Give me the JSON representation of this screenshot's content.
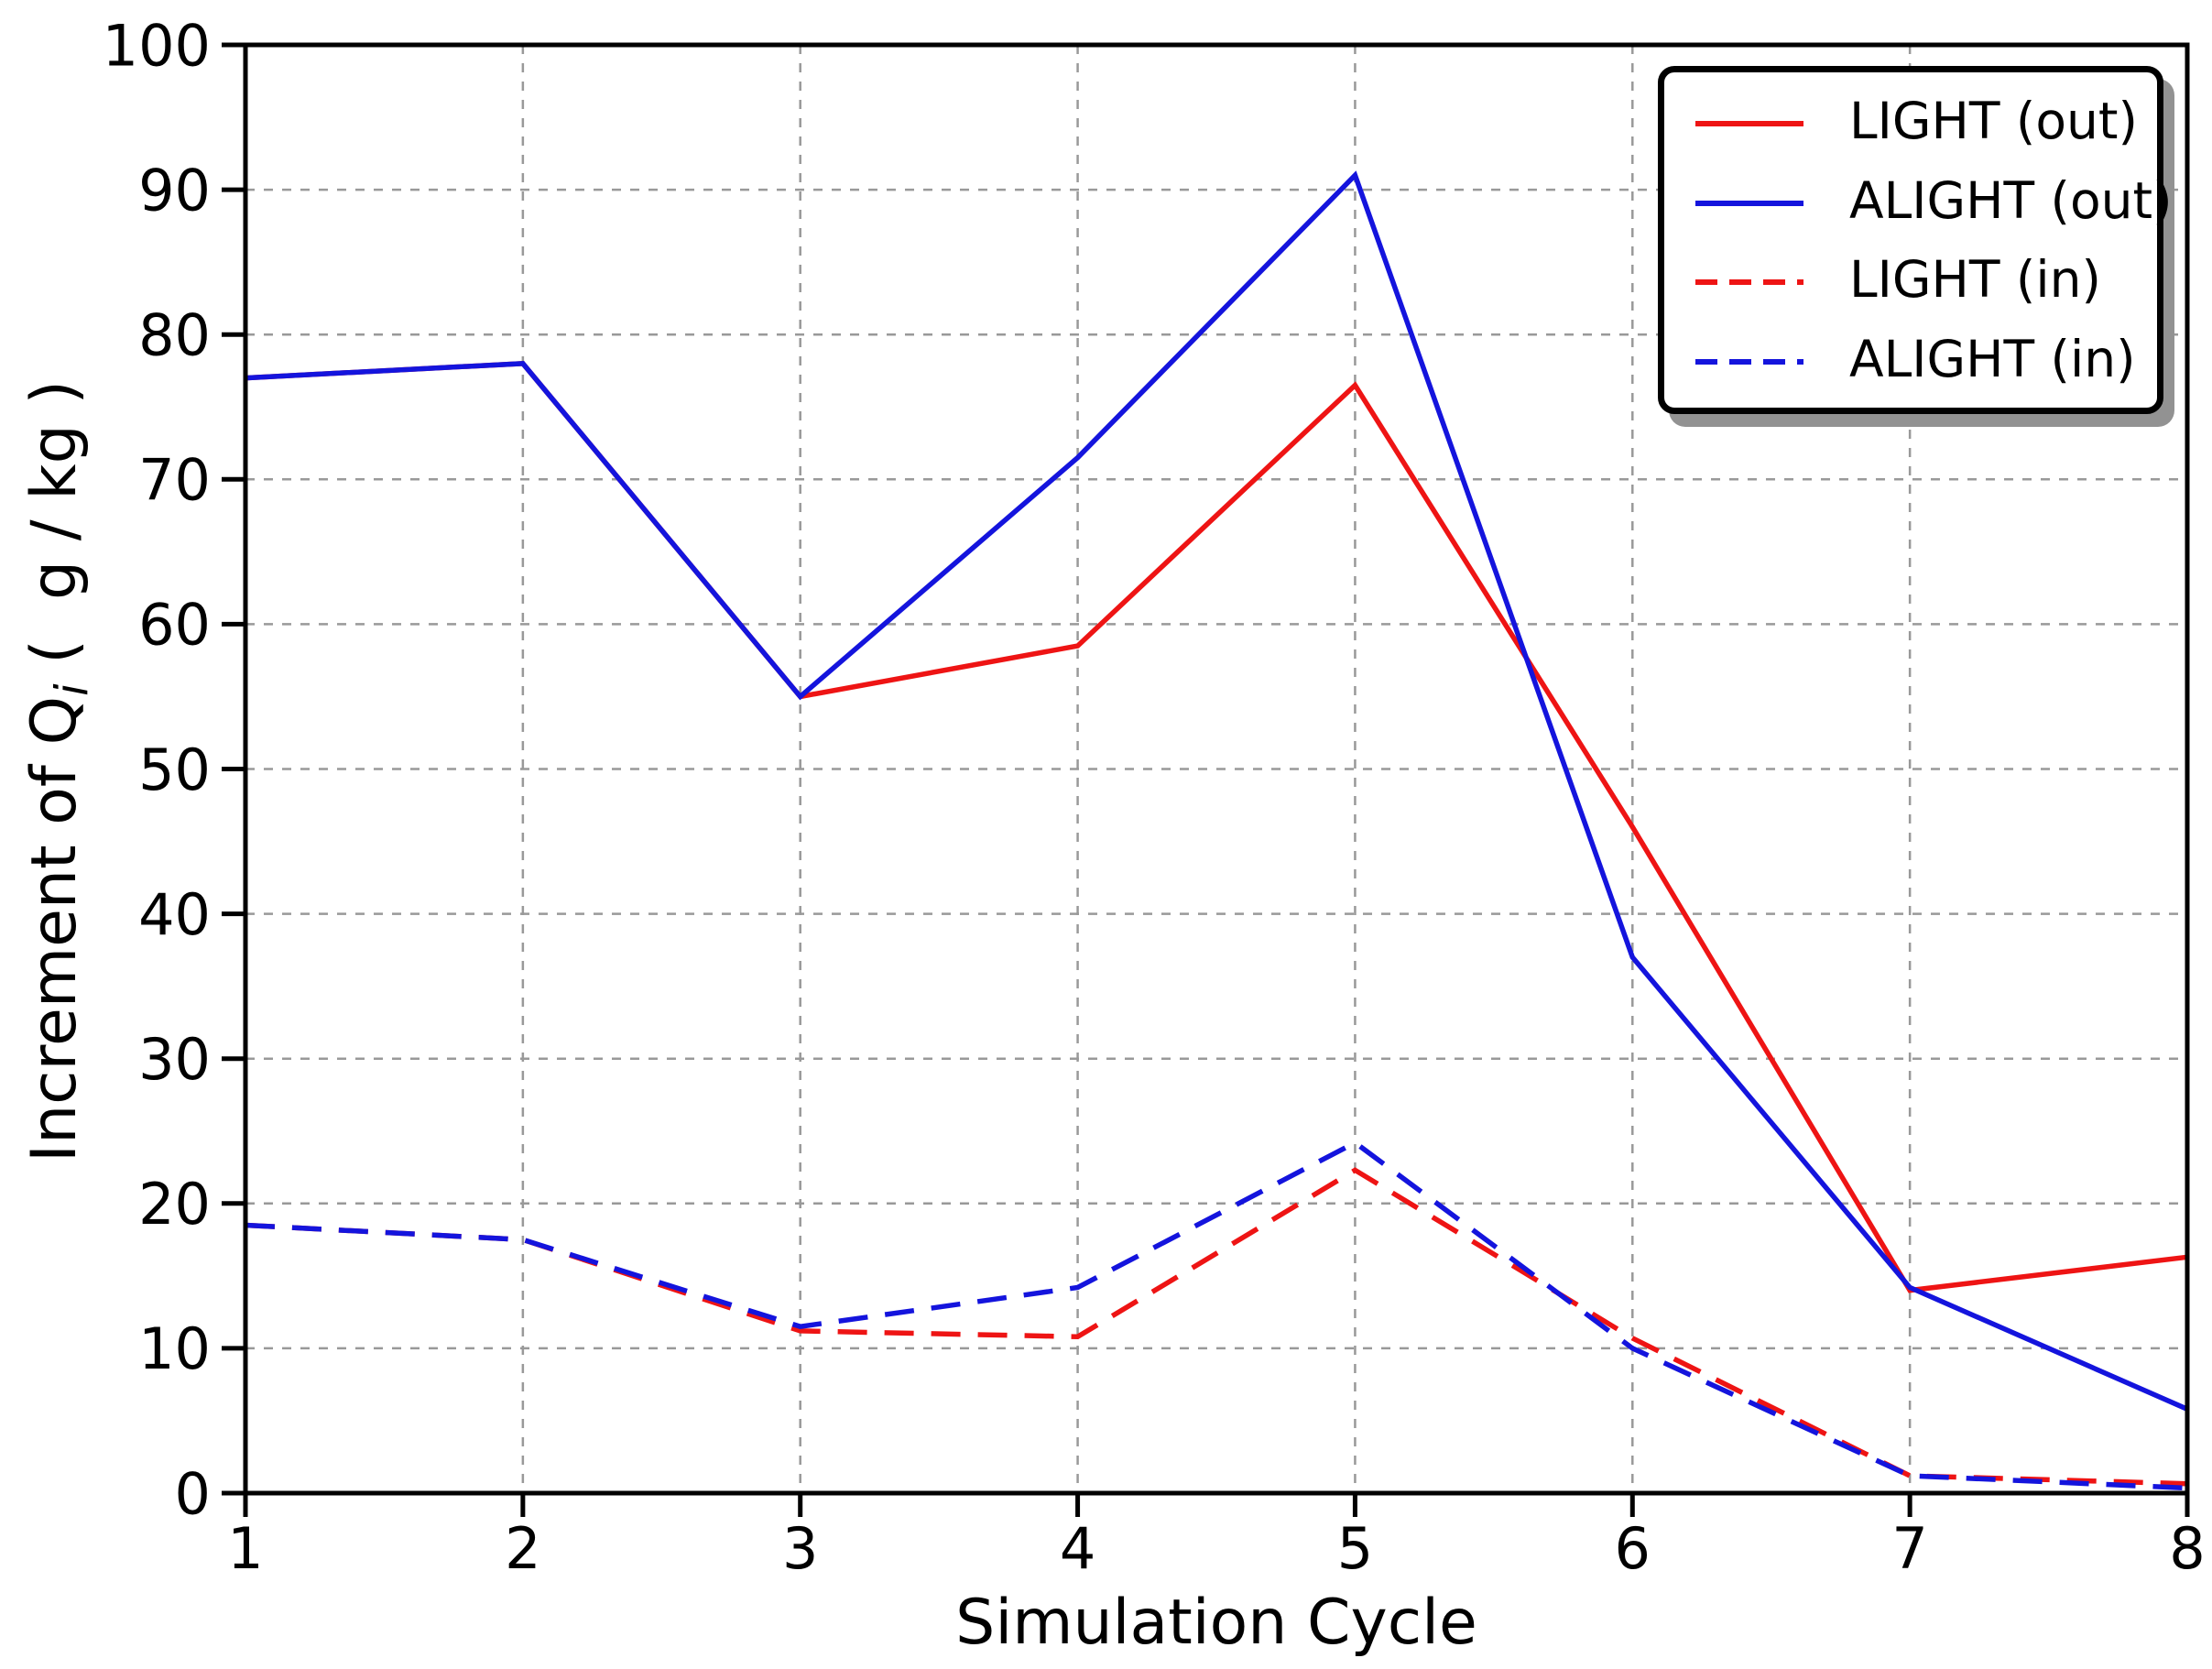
{
  "figure": {
    "background": "#ffffff",
    "xlabel": "Simulation Cycle",
    "ylabel_prefix": "Increment of Q",
    "ylabel_sub": "i",
    "ylabel_suffix": " (  g / kg )",
    "text_color": "#000000",
    "grid_color": "#999999",
    "spine_color": "#000000"
  },
  "chart_data": {
    "type": "line",
    "title": "",
    "xlabel": "Simulation Cycle",
    "ylabel": "Increment of Q_i (  g / kg )",
    "xlim": [
      1,
      8
    ],
    "ylim": [
      0,
      100
    ],
    "x_ticks": [
      1,
      2,
      3,
      4,
      5,
      6,
      7,
      8
    ],
    "y_ticks": [
      0,
      10,
      20,
      30,
      40,
      50,
      60,
      70,
      80,
      90,
      100
    ],
    "grid": "dashed-both-axes",
    "legend_position": "upper-right",
    "x": [
      1,
      2,
      3,
      4,
      5,
      6,
      7,
      8
    ],
    "series": [
      {
        "name": "LIGHT (out)",
        "color": "#ee1414",
        "style": "solid",
        "values": [
          77,
          78,
          55,
          58.5,
          76.5,
          46,
          14,
          16.3
        ]
      },
      {
        "name": "ALIGHT (out)",
        "color": "#1414dd",
        "style": "solid",
        "values": [
          77,
          78,
          55,
          71.5,
          91,
          37,
          14.2,
          5.8
        ]
      },
      {
        "name": "LIGHT (in)",
        "color": "#ee1414",
        "style": "dashed",
        "values": [
          18.5,
          17.5,
          11.2,
          10.8,
          22.3,
          10.7,
          1.2,
          0.65
        ]
      },
      {
        "name": "ALIGHT (in)",
        "color": "#1414dd",
        "style": "dashed",
        "values": [
          18.5,
          17.5,
          11.5,
          14.2,
          24.2,
          10,
          1.2,
          0.35
        ]
      }
    ]
  }
}
